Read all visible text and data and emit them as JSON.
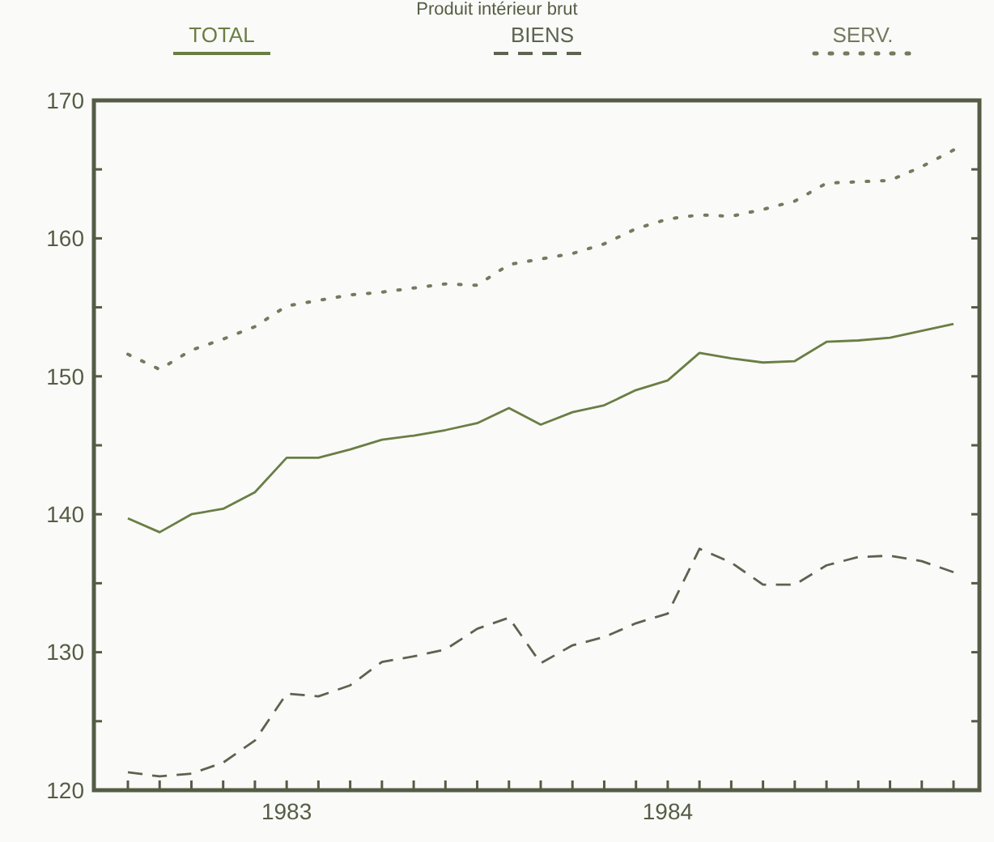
{
  "chart_data": {
    "type": "line",
    "title": "Produit intérieur brut",
    "categories": [
      null,
      null,
      null,
      null,
      null,
      "1983",
      null,
      null,
      null,
      null,
      null,
      null,
      null,
      null,
      null,
      null,
      null,
      "1984",
      null,
      null,
      null,
      null,
      null,
      null,
      null,
      null,
      null
    ],
    "series": [
      {
        "name": "TOTAL",
        "color": "#6a7e44",
        "line_style": "solid",
        "values": [
          139.7,
          138.7,
          140.0,
          140.4,
          141.6,
          144.1,
          144.1,
          144.7,
          145.4,
          145.7,
          146.1,
          146.6,
          147.7,
          146.5,
          147.4,
          147.9,
          149.0,
          149.7,
          151.7,
          151.3,
          151.0,
          151.1,
          152.5,
          152.6,
          152.8,
          153.3,
          153.8
        ]
      },
      {
        "name": "BIENS",
        "color": "#5c6350",
        "line_style": "dashed",
        "values": [
          121.3,
          121.0,
          121.2,
          122.0,
          123.6,
          127.0,
          126.8,
          127.6,
          129.3,
          129.7,
          130.2,
          131.7,
          132.5,
          129.2,
          130.5,
          131.1,
          132.1,
          132.8,
          137.5,
          136.5,
          134.9,
          134.9,
          136.3,
          136.9,
          137.0,
          136.6,
          135.8
        ]
      },
      {
        "name": "SERV.",
        "color": "#737a5e",
        "line_style": "dotted",
        "values": [
          151.6,
          150.5,
          151.9,
          152.7,
          153.6,
          155.1,
          155.5,
          155.9,
          156.1,
          156.4,
          156.7,
          156.6,
          158.1,
          158.5,
          158.9,
          159.6,
          160.7,
          161.4,
          161.7,
          161.6,
          162.1,
          162.7,
          164.0,
          164.1,
          164.2,
          165.2,
          166.4
        ]
      }
    ],
    "ylim": [
      120,
      170
    ],
    "yticks": [
      120,
      {
        "value": 125,
        "label": null
      },
      130,
      {
        "value": 135,
        "label": null
      },
      140,
      {
        "value": 145,
        "label": null
      },
      150,
      {
        "value": 155,
        "label": null
      },
      160,
      {
        "value": 165,
        "label": null
      },
      170
    ],
    "grid": false,
    "legend": "top",
    "marker": "none"
  }
}
